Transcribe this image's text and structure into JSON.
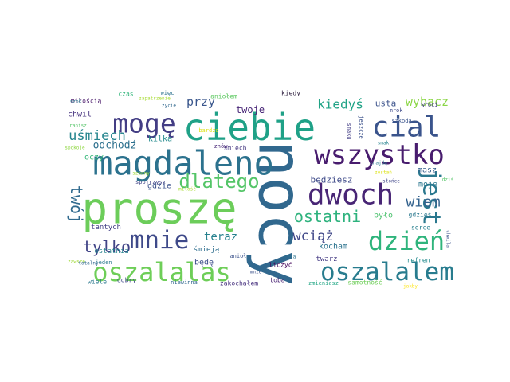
{
  "cloud": {
    "words": [
      {
        "text": "nocy",
        "color": "#31688e"
      },
      {
        "text": "proszę",
        "color": "#6ccd5a"
      },
      {
        "text": "ciebie",
        "color": "#1fa187"
      },
      {
        "text": "magdaleno",
        "color": "#2c728e"
      },
      {
        "text": "dwoch",
        "color": "#482575"
      },
      {
        "text": "mogę",
        "color": "#433d84"
      },
      {
        "text": "wszystko",
        "color": "#481c6e"
      },
      {
        "text": "cial",
        "color": "#3a548c"
      },
      {
        "text": "mnie",
        "color": "#3e4989"
      },
      {
        "text": "oszalalas",
        "color": "#6ece58"
      },
      {
        "text": "dzień",
        "color": "#2fb47c"
      },
      {
        "text": "oszalalem",
        "color": "#287c8e"
      },
      {
        "text": "jest",
        "color": "#2a788e"
      },
      {
        "text": "dlatego",
        "color": "#54c568"
      },
      {
        "text": "ostatni",
        "color": "#2db27d"
      },
      {
        "text": "twój",
        "color": "#306a8e"
      },
      {
        "text": "tylko",
        "color": "#414487"
      },
      {
        "text": "wiem",
        "color": "#33628d"
      },
      {
        "text": "wciąż",
        "color": "#3f4788"
      },
      {
        "text": "uśmiech",
        "color": "#25858e"
      },
      {
        "text": "kiedyś",
        "color": "#20a386"
      },
      {
        "text": "wybacz",
        "color": "#8bd646"
      },
      {
        "text": "przy",
        "color": "#39568c"
      },
      {
        "text": "teraz",
        "color": "#26818e"
      },
      {
        "text": "odchodź",
        "color": "#2d708e"
      },
      {
        "text": "twoje",
        "color": "#482677"
      },
      {
        "text": "będziesz",
        "color": "#3e4a89"
      },
      {
        "text": "usta",
        "color": "#3b528b"
      },
      {
        "text": "kilka",
        "color": "#238a8d"
      },
      {
        "text": "chwil",
        "color": "#46337f"
      },
      {
        "text": "kocham",
        "color": "#2c738e"
      },
      {
        "text": "masz",
        "color": "#355f8d"
      },
      {
        "text": "moje",
        "color": "#2a778e"
      },
      {
        "text": "było",
        "color": "#4ac16d"
      },
      {
        "text": "oczy",
        "color": "#35b779"
      },
      {
        "text": "gdzie",
        "color": "#3b518b"
      },
      {
        "text": "tantych",
        "color": "#424086"
      },
      {
        "text": "ostatnia",
        "color": "#26828e"
      },
      {
        "text": "śmieją",
        "color": "#2e6e8e"
      },
      {
        "text": "będę",
        "color": "#3d4e8a"
      },
      {
        "text": "twarz",
        "color": "#443a83"
      },
      {
        "text": "miłością",
        "color": "#481769"
      },
      {
        "text": "czas",
        "color": "#31b57b"
      },
      {
        "text": "kiedy",
        "color": "#2d1e3e"
      },
      {
        "text": "refren",
        "color": "#238a8d"
      },
      {
        "text": "zakochałem",
        "color": "#46307e"
      },
      {
        "text": "liczyć",
        "color": "#46085c"
      },
      {
        "text": "tobą",
        "color": "#482173"
      },
      {
        "text": "samotność",
        "color": "#6ece58"
      },
      {
        "text": "dobry",
        "color": "#3f4788"
      },
      {
        "text": "niewinna",
        "color": "#31688e"
      },
      {
        "text": "zmieniasz",
        "color": "#22a785"
      },
      {
        "text": "wiele",
        "color": "#2a788e"
      },
      {
        "text": "gdzieś",
        "color": "#2a788e"
      },
      {
        "text": "serce",
        "color": "#277f8e"
      },
      {
        "text": "szkoda",
        "color": "#3a548c"
      },
      {
        "text": "wróci",
        "color": "#433e85"
      },
      {
        "text": "mrok",
        "color": "#3e4a89"
      },
      {
        "text": "śmiech",
        "color": "#453781"
      },
      {
        "text": "znów",
        "color": "#482979"
      },
      {
        "text": "bardzo",
        "color": "#dde318"
      },
      {
        "text": "jeszcze",
        "color": "#3b518b"
      },
      {
        "text": "smaku",
        "color": "#433e85"
      },
      {
        "text": "więc",
        "color": "#2c728e"
      },
      {
        "text": "aniołem",
        "color": "#5ec962"
      },
      {
        "text": "zapatrzenie",
        "color": "#a8db34"
      },
      {
        "text": "szok",
        "color": "#2a788e"
      },
      {
        "text": "ranisz",
        "color": "#54c568"
      },
      {
        "text": "spokoje",
        "color": "#90d743"
      },
      {
        "text": "szpony",
        "color": "#a0da39"
      },
      {
        "text": "spojrzysz",
        "color": "#414487"
      },
      {
        "text": "miłość",
        "color": "#a8db34"
      },
      {
        "text": "życie",
        "color": "#31688e"
      },
      {
        "text": "zawsze",
        "color": "#a0da39"
      },
      {
        "text": "jeden",
        "color": "#2a788e"
      },
      {
        "text": "totalny",
        "color": "#31688e"
      },
      {
        "text": "całą",
        "color": "#2c728e"
      },
      {
        "text": "anioł",
        "color": "#3b528b"
      },
      {
        "text": "dziś",
        "color": "#54c568"
      },
      {
        "text": "słońce",
        "color": "#404688"
      },
      {
        "text": "znajdę",
        "color": "#2a788e"
      },
      {
        "text": "zostań",
        "color": "#dde318"
      },
      {
        "text": "smak",
        "color": "#26828e"
      },
      {
        "text": "chwila",
        "color": "#3b528b"
      },
      {
        "text": "jakby",
        "color": "#fde725"
      },
      {
        "text": "mnie",
        "color": "#3b528b"
      }
    ]
  }
}
